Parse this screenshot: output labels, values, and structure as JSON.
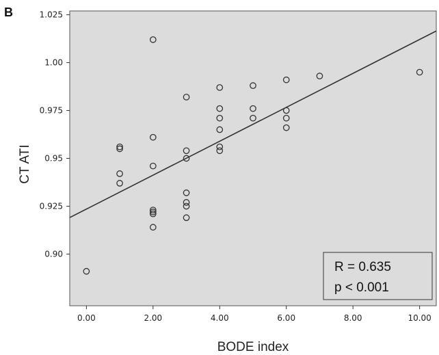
{
  "panel_label": "B",
  "annotation": {
    "line1": "R = 0.635",
    "line2": "p < 0.001"
  },
  "colors": {
    "plot_background": "#dcdcdc",
    "marker_stroke": "#333333",
    "line": "#333333"
  },
  "chart_data": {
    "type": "scatter",
    "xlabel": "BODE index",
    "ylabel": "CT ATI",
    "xlim": [
      -0.5,
      10.5
    ],
    "ylim": [
      0.873,
      1.027
    ],
    "grid": false,
    "x_ticks": [
      "0.00",
      "2.00",
      "4.00",
      "6.00",
      "8.00",
      "10.00"
    ],
    "x_tick_values": [
      0,
      2,
      4,
      6,
      8,
      10
    ],
    "y_ticks": [
      "0.90",
      "0.925",
      "0.95",
      "0.975",
      "1.00",
      "1.025"
    ],
    "y_tick_values": [
      0.9,
      0.925,
      0.95,
      0.975,
      1.0,
      1.025
    ],
    "points": [
      [
        0,
        0.891
      ],
      [
        1,
        0.956
      ],
      [
        1,
        0.955
      ],
      [
        1,
        0.942
      ],
      [
        1,
        0.937
      ],
      [
        2,
        1.012
      ],
      [
        2,
        0.961
      ],
      [
        2,
        0.946
      ],
      [
        2,
        0.923
      ],
      [
        2,
        0.922
      ],
      [
        2,
        0.921
      ],
      [
        2,
        0.914
      ],
      [
        3,
        0.982
      ],
      [
        3,
        0.954
      ],
      [
        3,
        0.95
      ],
      [
        3,
        0.932
      ],
      [
        3,
        0.927
      ],
      [
        3,
        0.925
      ],
      [
        3,
        0.919
      ],
      [
        4,
        0.987
      ],
      [
        4,
        0.976
      ],
      [
        4,
        0.971
      ],
      [
        4,
        0.965
      ],
      [
        4,
        0.956
      ],
      [
        4,
        0.954
      ],
      [
        5,
        0.988
      ],
      [
        5,
        0.976
      ],
      [
        5,
        0.971
      ],
      [
        6,
        0.991
      ],
      [
        6,
        0.975
      ],
      [
        6,
        0.971
      ],
      [
        6,
        0.966
      ],
      [
        7,
        0.993
      ],
      [
        10,
        0.995
      ]
    ],
    "regression_line": {
      "intercept": 0.9235,
      "slope": 0.00886
    }
  }
}
